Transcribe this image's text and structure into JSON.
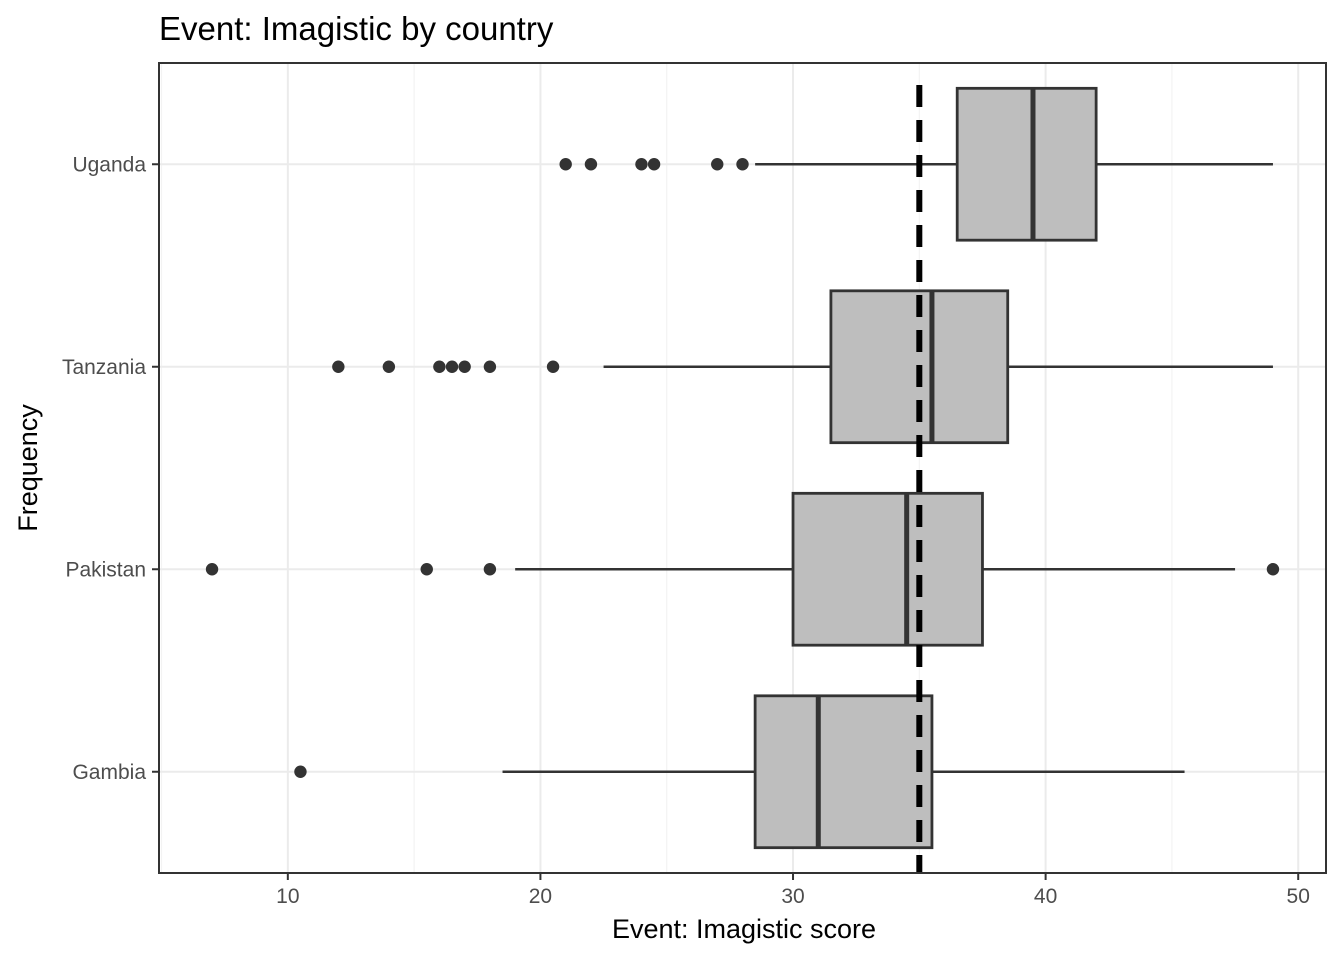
{
  "chart_data": {
    "type": "boxplot",
    "orientation": "horizontal",
    "title": "Event: Imagistic by country",
    "xlabel": "Event: Imagistic score",
    "ylabel": "Frequency",
    "xlim": [
      4.9,
      51.1
    ],
    "x_ticks": [
      10,
      20,
      30,
      40,
      50
    ],
    "grid": true,
    "reference_line": {
      "x": 35,
      "style": "dashed",
      "color": "#000000"
    },
    "box_fill": "#bebebe",
    "box_stroke": "#333333",
    "categories": [
      "Gambia",
      "Pakistan",
      "Tanzania",
      "Uganda"
    ],
    "series": [
      {
        "category": "Gambia",
        "whisker_low": 18.5,
        "q1": 28.5,
        "median": 31.0,
        "q3": 35.5,
        "whisker_high": 45.5,
        "outliers": [
          10.5
        ]
      },
      {
        "category": "Pakistan",
        "whisker_low": 19.0,
        "q1": 30.0,
        "median": 34.5,
        "q3": 37.5,
        "whisker_high": 47.5,
        "outliers": [
          7.0,
          15.5,
          18.0,
          49.0
        ]
      },
      {
        "category": "Tanzania",
        "whisker_low": 22.5,
        "q1": 31.5,
        "median": 35.5,
        "q3": 38.5,
        "whisker_high": 49.0,
        "outliers": [
          12.0,
          14.0,
          16.0,
          16.5,
          17.0,
          18.0,
          20.5
        ]
      },
      {
        "category": "Uganda",
        "whisker_low": 28.5,
        "q1": 36.5,
        "median": 39.5,
        "q3": 42.0,
        "whisker_high": 49.0,
        "outliers": [
          21.0,
          22.0,
          24.0,
          24.5,
          27.0,
          28.0
        ]
      }
    ]
  }
}
